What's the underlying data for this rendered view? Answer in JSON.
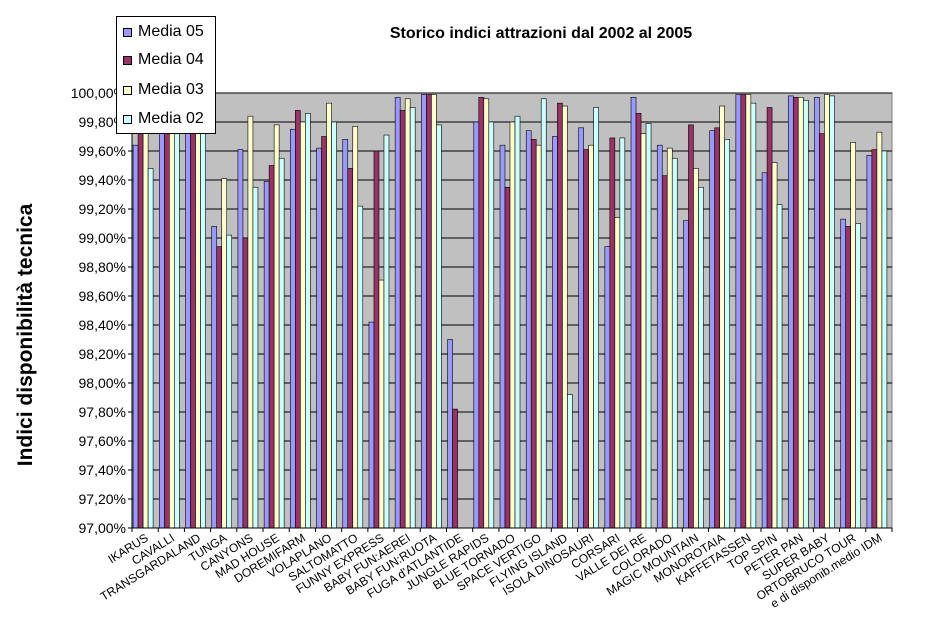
{
  "chart_data": {
    "type": "bar",
    "title": "Storico indici attrazioni dal 2002 al 2005",
    "xlabel": "",
    "ylabel": "Indici disponibilità tecnica",
    "ylim": [
      97.0,
      100.0
    ],
    "yticks": [
      97.0,
      97.2,
      97.4,
      97.6,
      97.8,
      98.0,
      98.2,
      98.4,
      98.6,
      98.8,
      99.0,
      99.2,
      99.4,
      99.6,
      99.8,
      100.0
    ],
    "ytick_labels": [
      "97,00%",
      "97,20%",
      "97,40%",
      "97,60%",
      "97,80%",
      "98,00%",
      "98,20%",
      "98,40%",
      "98,60%",
      "98,80%",
      "99,00%",
      "99,20%",
      "99,40%",
      "99,60%",
      "99,80%",
      "100,00%"
    ],
    "grid": true,
    "legend_position": "top-left",
    "categories": [
      "IKARUS",
      "CAVALLI",
      "TRANSGARDALAND",
      "TUNGA",
      "CANYONS",
      "MAD HOUSE",
      "DOREMIFARM",
      "VOLAPLANO",
      "SALTOMATTO",
      "FUNNY EXPRESS",
      "BABY FUN:AEREI",
      "BABY FUN:RUOTA",
      "FUGA d'ATLANTIDE",
      "JUNGLE RAPIDS",
      "BLUE TORNADO",
      "SPACE VERTIGO",
      "FLYING ISLAND",
      "ISOLA DINOSAURI",
      "CORSARI",
      "VALLE DEI RE",
      "COLORADO",
      "MAGIC MOUNTAIN",
      "MONOROTAIA",
      "KAFFETASSEN",
      "TOP SPIN",
      "PETER PAN",
      "SUPER BABY",
      "ORTOBRUCO TOUR",
      "e di disponib.medio IDM"
    ],
    "series": [
      {
        "name": "Media 05",
        "color": "#9999ff",
        "values": [
          99.64,
          99.92,
          99.95,
          99.08,
          99.61,
          99.39,
          99.75,
          99.62,
          99.68,
          98.42,
          99.97,
          99.99,
          98.3,
          99.8,
          99.64,
          99.74,
          99.7,
          99.76,
          98.94,
          99.97,
          99.64,
          99.12,
          99.74,
          99.99,
          99.45,
          99.98,
          99.97,
          99.13,
          99.57
        ]
      },
      {
        "name": "Media 04",
        "color": "#993366",
        "values": [
          99.97,
          99.92,
          99.95,
          98.94,
          99.0,
          99.5,
          99.88,
          99.7,
          99.48,
          99.6,
          99.88,
          99.99,
          97.82,
          99.97,
          99.35,
          99.68,
          99.93,
          99.61,
          99.69,
          99.86,
          99.43,
          99.78,
          99.76,
          99.99,
          99.9,
          99.97,
          99.72,
          99.08,
          99.61
        ]
      },
      {
        "name": "Media 03",
        "color": "#ffffcc",
        "values": [
          99.95,
          99.9,
          99.93,
          99.41,
          99.84,
          99.78,
          99.8,
          99.93,
          99.77,
          98.71,
          99.96,
          99.99,
          null,
          99.96,
          99.8,
          99.64,
          99.91,
          99.64,
          99.14,
          99.72,
          99.62,
          99.48,
          99.91,
          99.99,
          99.52,
          99.97,
          99.99,
          99.66,
          99.73
        ]
      },
      {
        "name": "Media 02",
        "color": "#ccffff",
        "values": [
          99.48,
          99.94,
          99.95,
          99.02,
          99.35,
          99.55,
          99.86,
          99.8,
          99.22,
          99.71,
          99.9,
          99.78,
          null,
          99.8,
          99.84,
          99.96,
          97.92,
          99.9,
          99.69,
          99.79,
          99.55,
          99.35,
          99.68,
          99.93,
          99.23,
          99.95,
          99.98,
          99.1,
          99.6
        ]
      }
    ]
  }
}
